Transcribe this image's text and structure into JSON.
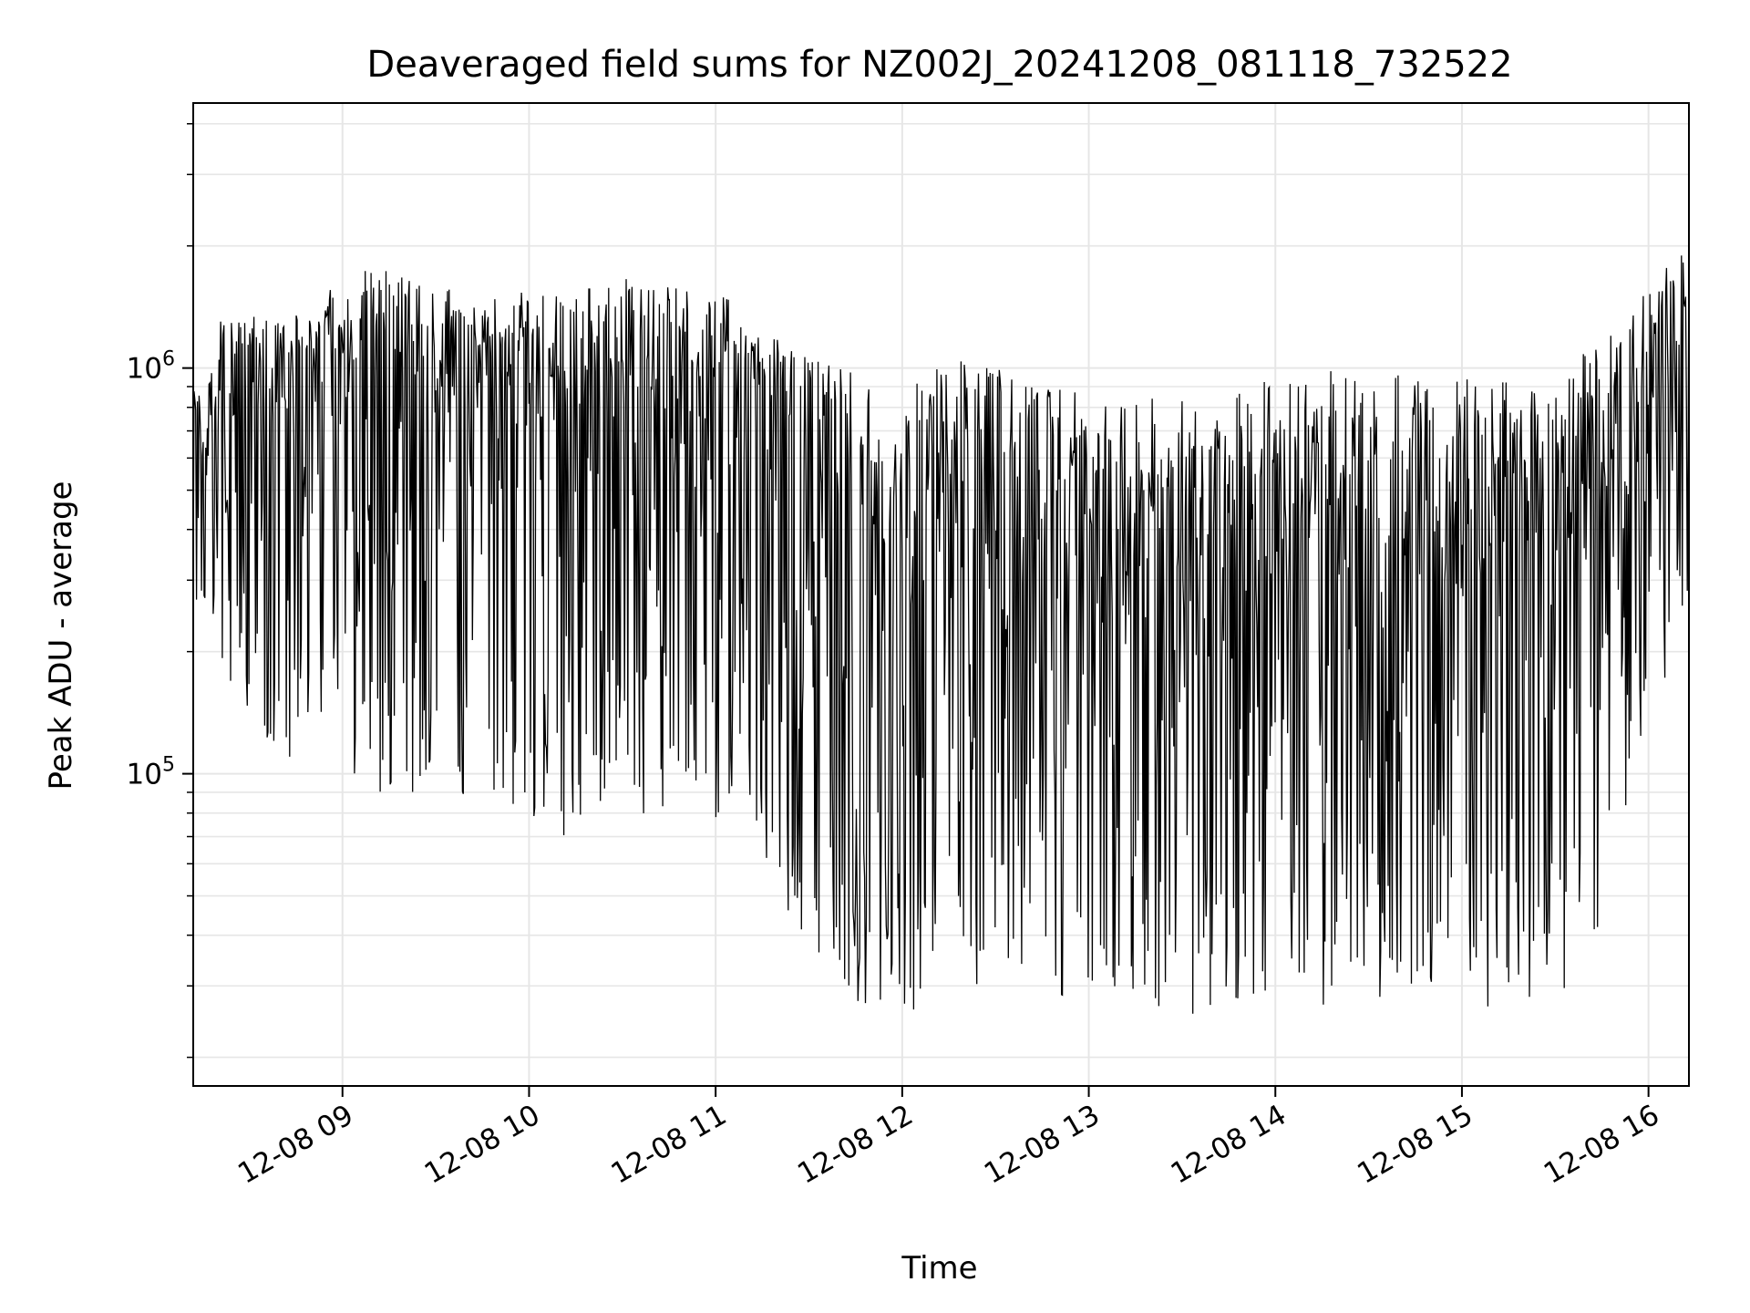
{
  "chart_data": {
    "type": "line",
    "title": "Deaveraged field sums for NZ002J_20241208_081118_732522",
    "xlabel": "Time",
    "ylabel": "Peak ADU - average",
    "yscale": "log",
    "ylim": [
      17000,
      4500000
    ],
    "xlim": [
      "2024-12-08 08:12",
      "2024-12-08 16:13"
    ],
    "grid": true,
    "line_color": "#000000",
    "grid_color": "#e6e6e6",
    "x_ticks": [
      {
        "value": "2024-12-08 09:00",
        "label": "12-08 09"
      },
      {
        "value": "2024-12-08 10:00",
        "label": "12-08 10"
      },
      {
        "value": "2024-12-08 11:00",
        "label": "12-08 11"
      },
      {
        "value": "2024-12-08 12:00",
        "label": "12-08 12"
      },
      {
        "value": "2024-12-08 13:00",
        "label": "12-08 13"
      },
      {
        "value": "2024-12-08 14:00",
        "label": "12-08 14"
      },
      {
        "value": "2024-12-08 15:00",
        "label": "12-08 15"
      },
      {
        "value": "2024-12-08 16:00",
        "label": "12-08 16"
      }
    ],
    "y_ticks": [
      {
        "value": 100000,
        "base": "10",
        "exp": "5"
      },
      {
        "value": 1000000,
        "base": "10",
        "exp": "6"
      }
    ],
    "series": [
      {
        "x": [
          "2024-12-08 08:12",
          "2024-12-08 08:20",
          "2024-12-08 08:30",
          "2024-12-08 08:40",
          "2024-12-08 08:50",
          "2024-12-08 09:00",
          "2024-12-08 09:10",
          "2024-12-08 09:20",
          "2024-12-08 09:30",
          "2024-12-08 09:40",
          "2024-12-08 09:50",
          "2024-12-08 10:00",
          "2024-12-08 10:10",
          "2024-12-08 10:20",
          "2024-12-08 10:30",
          "2024-12-08 10:40",
          "2024-12-08 10:50",
          "2024-12-08 11:00",
          "2024-12-08 11:10",
          "2024-12-08 11:20",
          "2024-12-08 11:30",
          "2024-12-08 11:40",
          "2024-12-08 11:50",
          "2024-12-08 12:00",
          "2024-12-08 12:10",
          "2024-12-08 12:20",
          "2024-12-08 12:30",
          "2024-12-08 12:40",
          "2024-12-08 12:50",
          "2024-12-08 13:00",
          "2024-12-08 13:10",
          "2024-12-08 13:20",
          "2024-12-08 13:30",
          "2024-12-08 13:40",
          "2024-12-08 13:50",
          "2024-12-08 14:00",
          "2024-12-08 14:10",
          "2024-12-08 14:20",
          "2024-12-08 14:30",
          "2024-12-08 14:40",
          "2024-12-08 14:50",
          "2024-12-08 15:00",
          "2024-12-08 15:10",
          "2024-12-08 15:20",
          "2024-12-08 15:30",
          "2024-12-08 15:40",
          "2024-12-08 15:50",
          "2024-12-08 16:00",
          "2024-12-08 16:10"
        ],
        "y_high": [
          900000,
          1300000,
          1400000,
          1300000,
          1500000,
          1700000,
          1800000,
          1700000,
          1600000,
          1600000,
          1500000,
          1550000,
          1500000,
          1600000,
          1700000,
          1650000,
          1600000,
          1550000,
          1400000,
          1200000,
          1100000,
          1000000,
          950000,
          1000000,
          1000000,
          1050000,
          1000000,
          950000,
          900000,
          850000,
          850000,
          850000,
          830000,
          850000,
          880000,
          950000,
          950000,
          1000000,
          950000,
          960000,
          950000,
          950000,
          930000,
          920000,
          940000,
          1100000,
          1300000,
          1700000,
          2000000
        ],
        "y_median": [
          600000,
          700000,
          800000,
          850000,
          900000,
          950000,
          950000,
          950000,
          900000,
          900000,
          850000,
          800000,
          800000,
          850000,
          900000,
          900000,
          850000,
          850000,
          750000,
          650000,
          550000,
          480000,
          430000,
          420000,
          420000,
          430000,
          420000,
          400000,
          380000,
          350000,
          350000,
          340000,
          340000,
          350000,
          360000,
          380000,
          380000,
          400000,
          390000,
          390000,
          380000,
          380000,
          370000,
          380000,
          400000,
          500000,
          700000,
          900000,
          1000000
        ],
        "y_low": [
          250000,
          200000,
          130000,
          110000,
          110000,
          100000,
          90000,
          90000,
          90000,
          85000,
          70000,
          75000,
          70000,
          70000,
          75000,
          75000,
          70000,
          70000,
          65000,
          50000,
          35000,
          30000,
          25000,
          22000,
          25000,
          25000,
          28000,
          27000,
          28000,
          30000,
          28000,
          27000,
          25000,
          26000,
          27000,
          30000,
          28000,
          26000,
          25000,
          27000,
          28000,
          27000,
          25000,
          24000,
          25000,
          28000,
          60000,
          110000,
          250000
        ]
      }
    ]
  }
}
